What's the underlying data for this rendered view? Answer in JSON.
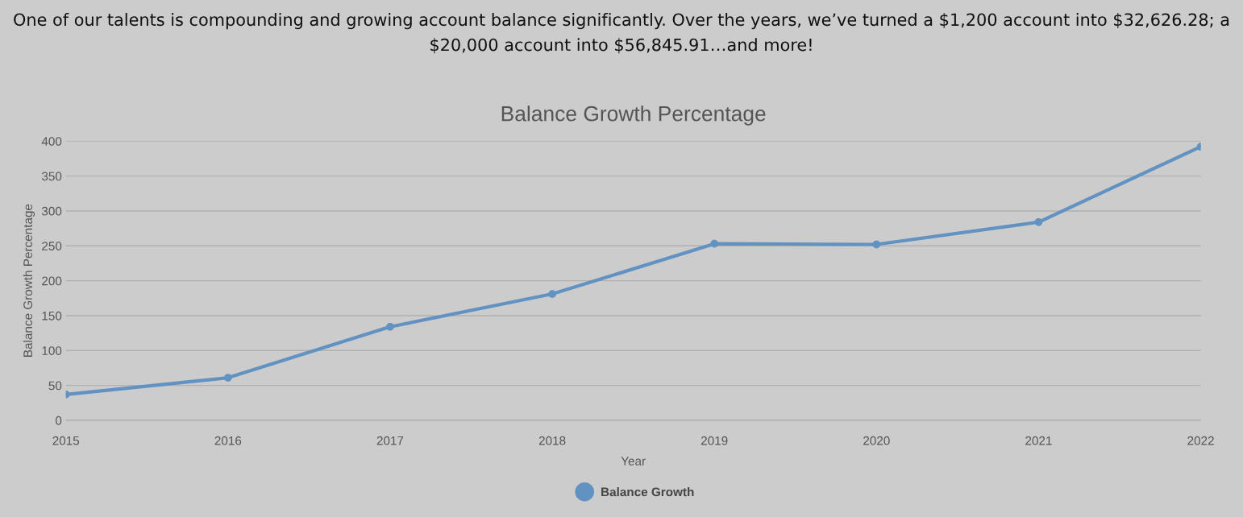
{
  "chart_data": {
    "type": "line",
    "title": "Balance Growth Percentage",
    "xlabel": "Year",
    "ylabel": "Balance Growth Percentage",
    "annotations": [
      "One of our talents is compounding and growing account balance significantly. Over the years, we’ve turned a $1,200 account into $32,626.28; a $20,000 account into $56,845.91…and more!"
    ],
    "x": [
      2015,
      2016,
      2017,
      2018,
      2019,
      2020,
      2021,
      2022
    ],
    "series": [
      {
        "name": "Balance Growth",
        "color": "#6192c2",
        "values": [
          37,
          61,
          134,
          181,
          253,
          252,
          284,
          392
        ]
      }
    ],
    "xlim": [
      2015,
      2022
    ],
    "xticks": [
      2015,
      2016,
      2017,
      2018,
      2019,
      2020,
      2021,
      2022
    ],
    "ylim": [
      0,
      400
    ],
    "yticks": [
      0,
      50,
      100,
      150,
      200,
      250,
      300,
      350,
      400
    ],
    "grid": "y",
    "legend": "bottom",
    "marker": "circle",
    "line_style": "solid"
  }
}
